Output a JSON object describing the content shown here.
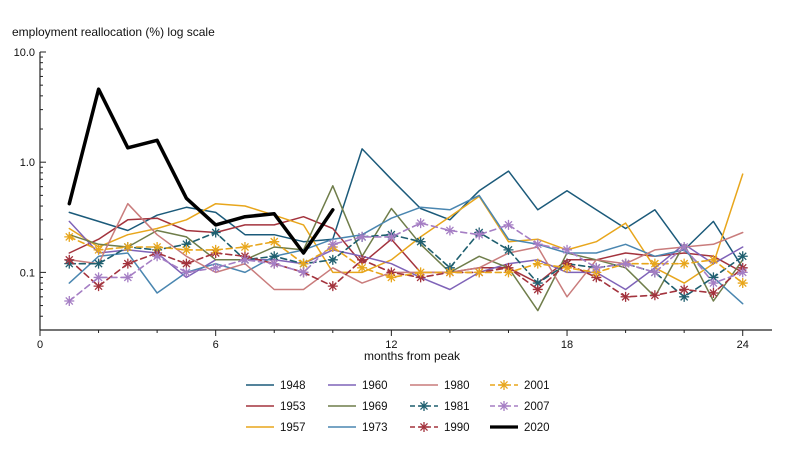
{
  "chart_data": {
    "type": "line",
    "title": "",
    "ylabel": "employment reallocation (%) log scale",
    "xlabel": "months from peak",
    "yscale": "log",
    "ylim": [
      0.03,
      10.0
    ],
    "xlim": [
      0,
      25
    ],
    "x_ticks": [
      0,
      6,
      12,
      18,
      24
    ],
    "x_tick_labels": [
      "0",
      "6",
      "12",
      "18",
      "24"
    ],
    "y_ticks": [
      0.1,
      1.0,
      10.0
    ],
    "y_tick_labels": [
      "0.1",
      "1.0",
      "10.0"
    ],
    "legend_position": "bottom",
    "series": [
      {
        "name": "1948",
        "color": "#1b5a7a",
        "dashed": false,
        "marker": "none",
        "width": 1.5,
        "x": [
          1,
          2,
          3,
          4,
          5,
          6,
          7,
          8,
          9,
          10,
          11,
          12,
          13,
          14,
          15,
          16,
          17,
          18,
          19,
          20,
          21,
          22,
          23,
          24
        ],
        "values": [
          0.35,
          0.29,
          0.24,
          0.33,
          0.39,
          0.35,
          0.22,
          0.22,
          0.19,
          0.2,
          1.32,
          0.7,
          0.38,
          0.3,
          0.55,
          0.83,
          0.37,
          0.55,
          0.37,
          0.25,
          0.37,
          0.16,
          0.29,
          0.11
        ]
      },
      {
        "name": "1953",
        "color": "#a3333d",
        "dashed": false,
        "marker": "none",
        "width": 1.5,
        "x": [
          1,
          2,
          3,
          4,
          5,
          6,
          7,
          8,
          9,
          10,
          11,
          12,
          13,
          14,
          15,
          16,
          17,
          18,
          19,
          20,
          21,
          22,
          23,
          24
        ],
        "values": [
          0.15,
          0.2,
          0.3,
          0.31,
          0.24,
          0.23,
          0.27,
          0.27,
          0.32,
          0.25,
          0.12,
          0.2,
          0.1,
          0.1,
          0.11,
          0.11,
          0.08,
          0.13,
          0.13,
          0.15,
          0.14,
          0.15,
          0.14,
          0.1
        ]
      },
      {
        "name": "1957",
        "color": "#e8a61c",
        "dashed": false,
        "marker": "none",
        "width": 1.5,
        "x": [
          1,
          2,
          3,
          4,
          5,
          6,
          7,
          8,
          9,
          10,
          11,
          12,
          13,
          14,
          15,
          16,
          17,
          18,
          19,
          20,
          21,
          22,
          23,
          24
        ],
        "values": [
          0.25,
          0.17,
          0.22,
          0.25,
          0.3,
          0.42,
          0.4,
          0.33,
          0.27,
          0.1,
          0.1,
          0.13,
          0.21,
          0.32,
          0.49,
          0.19,
          0.2,
          0.16,
          0.19,
          0.28,
          0.11,
          0.08,
          0.12,
          0.78
        ]
      },
      {
        "name": "1960",
        "color": "#7f63b8",
        "dashed": false,
        "marker": "none",
        "width": 1.5,
        "x": [
          1,
          2,
          3,
          4,
          5,
          6,
          7,
          8,
          9,
          10,
          11,
          12,
          13,
          14,
          15,
          16,
          17,
          18,
          19,
          20,
          21,
          22,
          23,
          24
        ],
        "values": [
          0.29,
          0.15,
          0.16,
          0.15,
          0.09,
          0.13,
          0.13,
          0.13,
          0.12,
          0.16,
          0.14,
          0.12,
          0.09,
          0.07,
          0.1,
          0.12,
          0.13,
          0.1,
          0.1,
          0.07,
          0.11,
          0.18,
          0.12,
          0.17
        ]
      },
      {
        "name": "1969",
        "color": "#6f7d4a",
        "dashed": false,
        "marker": "none",
        "width": 1.5,
        "x": [
          1,
          2,
          3,
          4,
          5,
          6,
          7,
          8,
          9,
          10,
          11,
          12,
          13,
          14,
          15,
          16,
          17,
          18,
          19,
          20,
          21,
          22,
          23,
          24
        ],
        "values": [
          0.22,
          0.18,
          0.17,
          0.24,
          0.21,
          0.13,
          0.13,
          0.17,
          0.16,
          0.61,
          0.14,
          0.38,
          0.18,
          0.1,
          0.14,
          0.11,
          0.045,
          0.15,
          0.13,
          0.11,
          0.06,
          0.18,
          0.055,
          0.13
        ]
      },
      {
        "name": "1973",
        "color": "#4a86b0",
        "dashed": false,
        "marker": "none",
        "width": 1.5,
        "x": [
          1,
          2,
          3,
          4,
          5,
          6,
          7,
          8,
          9,
          10,
          11,
          12,
          13,
          14,
          15,
          16,
          17,
          18,
          19,
          20,
          21,
          22,
          23,
          24
        ],
        "values": [
          0.08,
          0.14,
          0.15,
          0.065,
          0.1,
          0.12,
          0.1,
          0.14,
          0.16,
          0.2,
          0.22,
          0.31,
          0.39,
          0.37,
          0.5,
          0.2,
          0.18,
          0.15,
          0.15,
          0.18,
          0.14,
          0.16,
          0.09,
          0.052
        ]
      },
      {
        "name": "1980",
        "color": "#c97c7c",
        "dashed": false,
        "marker": "none",
        "width": 1.5,
        "x": [
          1,
          2,
          3,
          4,
          5,
          6,
          7,
          8,
          9,
          10,
          11,
          12,
          13,
          14,
          15,
          16,
          17,
          18,
          19,
          20,
          21,
          22,
          23,
          24
        ],
        "values": [
          0.13,
          0.12,
          0.42,
          0.22,
          0.14,
          0.1,
          0.12,
          0.07,
          0.07,
          0.11,
          0.08,
          0.1,
          0.1,
          0.1,
          0.11,
          0.15,
          0.17,
          0.06,
          0.13,
          0.12,
          0.16,
          0.17,
          0.18,
          0.23
        ]
      },
      {
        "name": "1981",
        "color": "#1f5f6f",
        "dashed": true,
        "marker": "star",
        "width": 1.6,
        "x": [
          1,
          2,
          3,
          4,
          5,
          6,
          7,
          8,
          9,
          10,
          11,
          12,
          13,
          14,
          15,
          16,
          17,
          18,
          19,
          20,
          21,
          22,
          23,
          24
        ],
        "values": [
          0.12,
          0.12,
          0.17,
          0.16,
          0.18,
          0.23,
          0.13,
          0.14,
          0.12,
          0.13,
          0.21,
          0.22,
          0.19,
          0.11,
          0.23,
          0.16,
          0.08,
          0.12,
          0.11,
          0.12,
          0.1,
          0.06,
          0.09,
          0.14
        ]
      },
      {
        "name": "1990",
        "color": "#a3333d",
        "dashed": true,
        "marker": "star",
        "width": 1.6,
        "x": [
          1,
          2,
          3,
          4,
          5,
          6,
          7,
          8,
          9,
          10,
          11,
          12,
          13,
          14,
          15,
          16,
          17,
          18,
          19,
          20,
          21,
          22,
          23,
          24
        ],
        "values": [
          0.13,
          0.075,
          0.12,
          0.15,
          0.12,
          0.15,
          0.14,
          0.12,
          0.1,
          0.075,
          0.13,
          0.1,
          0.09,
          0.1,
          0.1,
          0.11,
          0.07,
          0.12,
          0.09,
          0.06,
          0.062,
          0.07,
          0.065,
          0.11
        ]
      },
      {
        "name": "2001",
        "color": "#e8a61c",
        "dashed": true,
        "marker": "star",
        "width": 1.6,
        "x": [
          1,
          2,
          3,
          4,
          5,
          6,
          7,
          8,
          9,
          10,
          11,
          12,
          13,
          14,
          15,
          16,
          17,
          18,
          19,
          20,
          21,
          22,
          23,
          24
        ],
        "values": [
          0.21,
          0.16,
          0.17,
          0.17,
          0.16,
          0.16,
          0.17,
          0.19,
          0.12,
          0.17,
          0.11,
          0.09,
          0.1,
          0.1,
          0.1,
          0.1,
          0.12,
          0.11,
          0.1,
          0.12,
          0.12,
          0.12,
          0.13,
          0.08
        ]
      },
      {
        "name": "2007",
        "color": "#a57ec4",
        "dashed": true,
        "marker": "star",
        "width": 1.6,
        "x": [
          1,
          2,
          3,
          4,
          5,
          6,
          7,
          8,
          9,
          10,
          11,
          12,
          13,
          14,
          15,
          16,
          17,
          18,
          19,
          20,
          21,
          22,
          23,
          24
        ],
        "values": [
          0.055,
          0.09,
          0.09,
          0.14,
          0.1,
          0.11,
          0.13,
          0.12,
          0.1,
          0.18,
          0.21,
          0.21,
          0.28,
          0.24,
          0.22,
          0.27,
          0.18,
          0.16,
          0.11,
          0.12,
          0.1,
          0.17,
          0.08,
          0.1
        ]
      },
      {
        "name": "2020",
        "color": "#000000",
        "dashed": false,
        "marker": "none",
        "width": 3.5,
        "x": [
          1,
          2,
          3,
          4,
          5,
          6,
          7,
          8,
          9,
          10
        ],
        "values": [
          0.42,
          4.6,
          1.35,
          1.58,
          0.47,
          0.27,
          0.32,
          0.34,
          0.15,
          0.37
        ]
      }
    ]
  }
}
